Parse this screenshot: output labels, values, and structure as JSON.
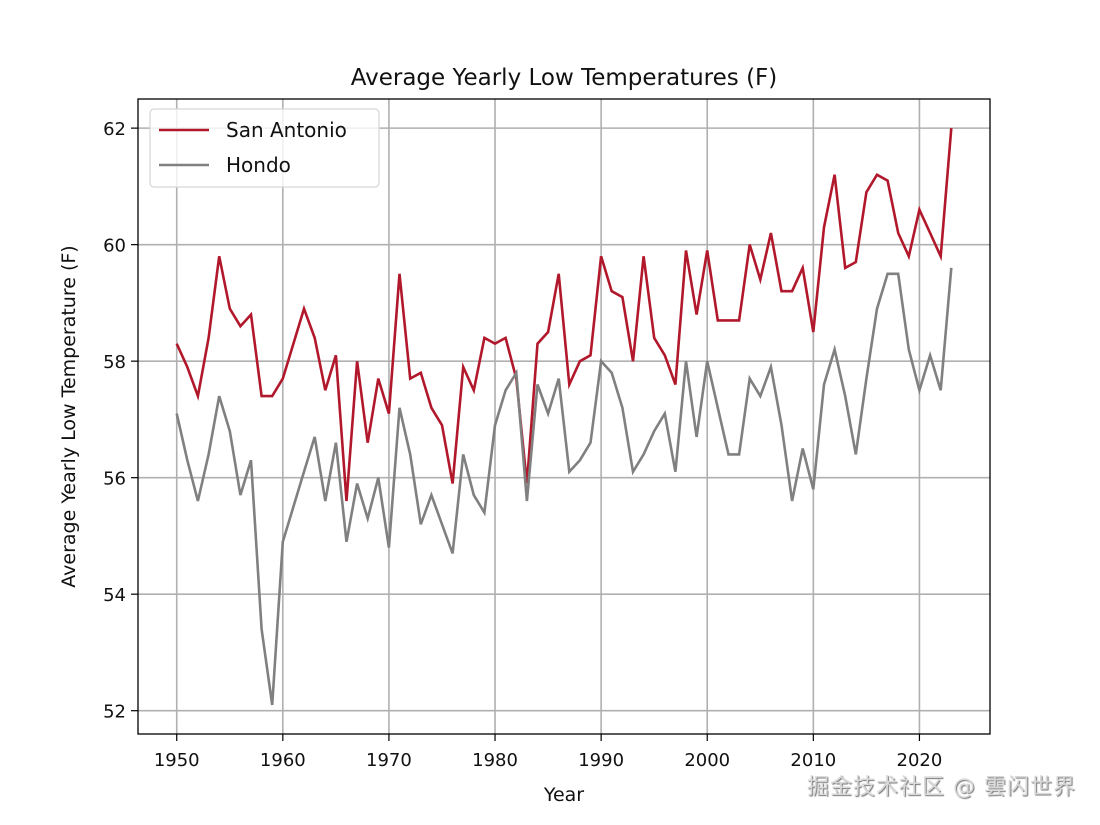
{
  "chart_data": {
    "type": "line",
    "title": "Average Yearly Low Temperatures (F)",
    "xlabel": "Year",
    "ylabel": "Average Yearly Low Temperature (F)",
    "xlim": [
      1946.35,
      2026.65
    ],
    "ylim": [
      51.6,
      62.5
    ],
    "xticks": [
      1950,
      1960,
      1970,
      1980,
      1990,
      2000,
      2010,
      2020
    ],
    "yticks": [
      52,
      54,
      56,
      58,
      60,
      62
    ],
    "grid": true,
    "legend_position": "top-left",
    "x": [
      1950,
      1951,
      1952,
      1953,
      1954,
      1955,
      1956,
      1957,
      1958,
      1959,
      1960,
      1961,
      1962,
      1963,
      1964,
      1965,
      1966,
      1967,
      1968,
      1969,
      1970,
      1971,
      1972,
      1973,
      1974,
      1975,
      1976,
      1977,
      1978,
      1979,
      1980,
      1981,
      1982,
      1983,
      1984,
      1985,
      1986,
      1987,
      1988,
      1989,
      1990,
      1991,
      1992,
      1993,
      1994,
      1995,
      1996,
      1997,
      1998,
      1999,
      2000,
      2001,
      2002,
      2003,
      2004,
      2005,
      2006,
      2007,
      2008,
      2009,
      2010,
      2011,
      2012,
      2013,
      2014,
      2015,
      2016,
      2017,
      2018,
      2019,
      2020,
      2021,
      2022,
      2023
    ],
    "series": [
      {
        "name": "San Antonio",
        "color": "#b2182b",
        "values": [
          58.3,
          57.9,
          57.4,
          58.4,
          59.8,
          58.9,
          58.6,
          58.8,
          57.4,
          57.4,
          57.7,
          58.3,
          58.9,
          58.4,
          57.5,
          58.1,
          55.6,
          58.0,
          56.6,
          57.7,
          57.1,
          59.5,
          57.7,
          57.8,
          57.2,
          56.9,
          55.9,
          57.9,
          57.5,
          58.4,
          58.3,
          58.4,
          57.7,
          55.9,
          58.3,
          58.5,
          59.5,
          57.6,
          58.0,
          58.1,
          59.8,
          59.2,
          59.1,
          58.0,
          59.8,
          58.4,
          58.1,
          57.6,
          59.9,
          58.8,
          59.9,
          58.7,
          58.7,
          58.7,
          60.0,
          59.4,
          60.2,
          59.2,
          59.2,
          59.6,
          58.5,
          60.3,
          61.2,
          59.6,
          59.7,
          60.9,
          61.2,
          61.1,
          60.2,
          59.8,
          60.6,
          60.2,
          59.8,
          62.0
        ]
      },
      {
        "name": "Hondo",
        "color": "#808080",
        "values": [
          57.1,
          56.3,
          55.6,
          56.4,
          57.4,
          56.8,
          55.7,
          56.3,
          53.4,
          52.1,
          54.9,
          55.5,
          56.1,
          56.7,
          55.6,
          56.6,
          54.9,
          55.9,
          55.3,
          56.0,
          54.8,
          57.2,
          56.4,
          55.2,
          55.7,
          55.2,
          54.7,
          56.4,
          55.7,
          55.4,
          56.9,
          57.5,
          57.8,
          55.6,
          57.6,
          57.1,
          57.7,
          56.1,
          56.3,
          56.6,
          58.0,
          57.8,
          57.2,
          56.1,
          56.4,
          56.8,
          57.1,
          56.1,
          58.0,
          56.7,
          58.0,
          57.2,
          56.4,
          56.4,
          57.7,
          57.4,
          57.9,
          56.9,
          55.6,
          56.5,
          55.8,
          57.6,
          58.2,
          57.4,
          56.4,
          57.7,
          58.9,
          59.5,
          59.5,
          58.2,
          57.5,
          58.1,
          57.5,
          59.6
        ]
      }
    ]
  },
  "watermark": "掘金技术社区 @ 雲闪世界"
}
